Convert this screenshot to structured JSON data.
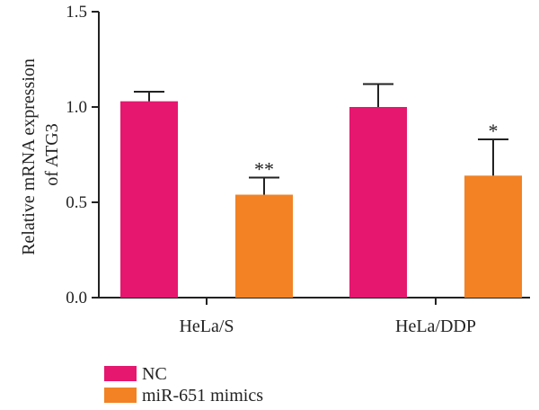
{
  "chart_data": {
    "type": "bar",
    "categories": [
      "HeLa/S",
      "HeLa/DDP"
    ],
    "series": [
      {
        "name": "NC",
        "color": "#e6176f",
        "values": [
          1.03,
          1.0
        ],
        "errors": [
          0.05,
          0.12
        ],
        "annotations": [
          "",
          ""
        ]
      },
      {
        "name": "miR-651 mimics",
        "color": "#f28224",
        "values": [
          0.54,
          0.64
        ],
        "errors": [
          0.09,
          0.19
        ],
        "annotations": [
          "**",
          "*"
        ]
      }
    ],
    "ylabel_lines": [
      "Relative mRNA expression",
      "of ATG3"
    ],
    "yticks": [
      "0.0",
      "0.5",
      "1.0",
      "1.5"
    ],
    "ylim": [
      0,
      1.5
    ],
    "legend_position": "bottom-left",
    "grid": false
  }
}
